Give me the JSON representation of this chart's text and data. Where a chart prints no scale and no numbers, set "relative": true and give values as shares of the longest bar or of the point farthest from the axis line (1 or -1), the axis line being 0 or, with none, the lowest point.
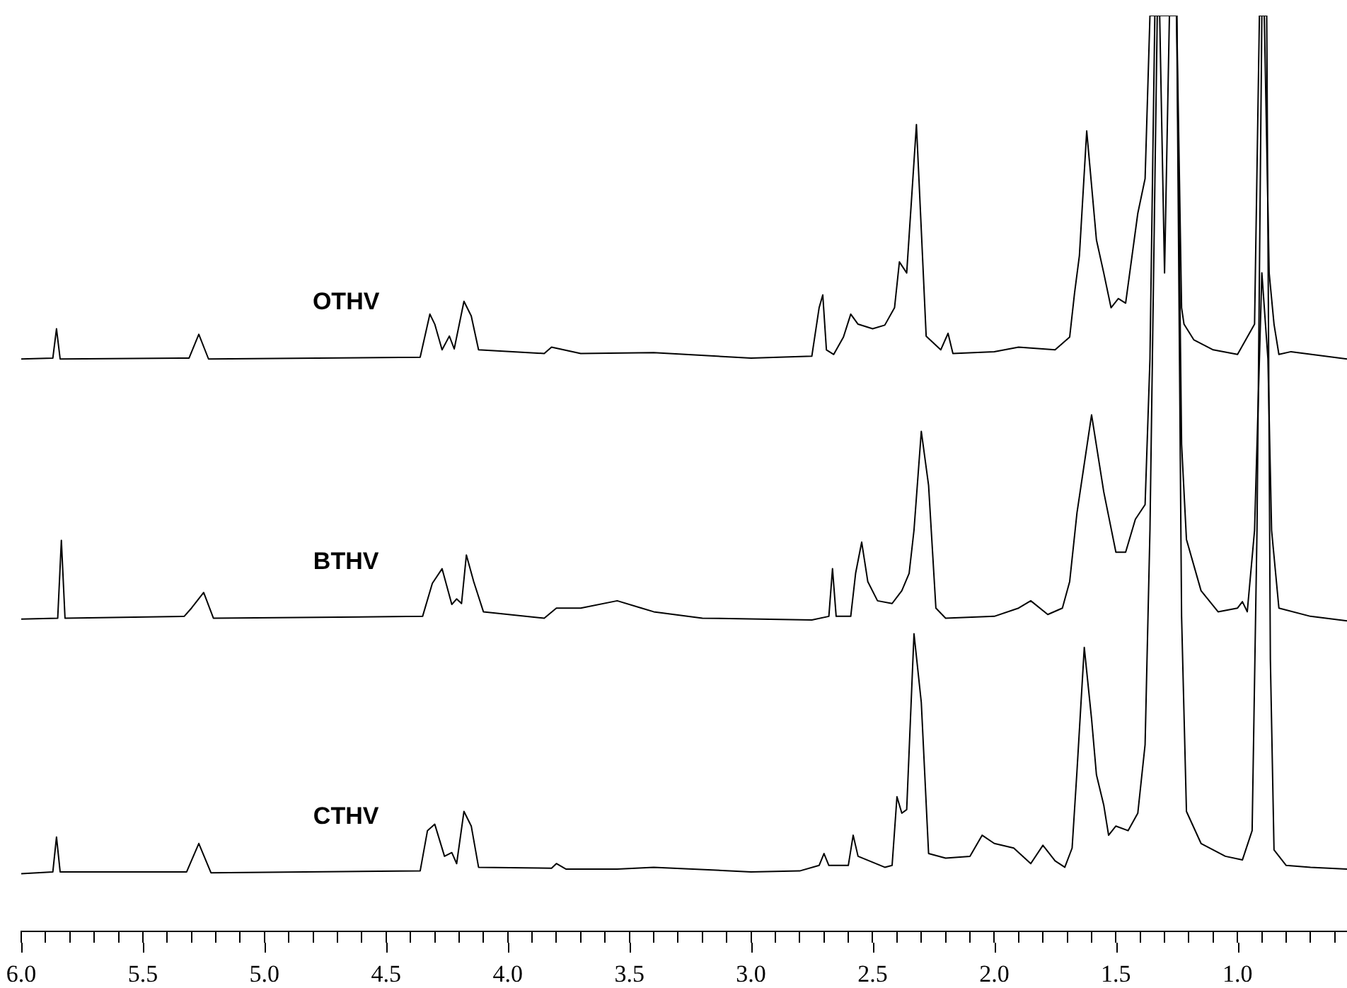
{
  "chart_data": {
    "type": "line",
    "relative": true,
    "legend": false,
    "grid": false,
    "tick_labels": "x",
    "xlim": [
      6.0,
      0.55
    ],
    "xticks": [
      {
        "value": 6.0,
        "label": "6.0"
      },
      {
        "value": 5.9,
        "label": null
      },
      {
        "value": 5.8,
        "label": null
      },
      {
        "value": 5.7,
        "label": null
      },
      {
        "value": 5.6,
        "label": null
      },
      {
        "value": 5.5,
        "label": "5.5"
      },
      {
        "value": 5.4,
        "label": null
      },
      {
        "value": 5.3,
        "label": null
      },
      {
        "value": 5.2,
        "label": null
      },
      {
        "value": 5.1,
        "label": null
      },
      {
        "value": 5.0,
        "label": "5.0"
      },
      {
        "value": 4.9,
        "label": null
      },
      {
        "value": 4.8,
        "label": null
      },
      {
        "value": 4.7,
        "label": null
      },
      {
        "value": 4.6,
        "label": null
      },
      {
        "value": 4.5,
        "label": "4.5"
      },
      {
        "value": 4.4,
        "label": null
      },
      {
        "value": 4.3,
        "label": null
      },
      {
        "value": 4.2,
        "label": null
      },
      {
        "value": 4.1,
        "label": null
      },
      {
        "value": 4.0,
        "label": "4.0"
      },
      {
        "value": 3.9,
        "label": null
      },
      {
        "value": 3.8,
        "label": null
      },
      {
        "value": 3.7,
        "label": null
      },
      {
        "value": 3.6,
        "label": null
      },
      {
        "value": 3.5,
        "label": "3.5"
      },
      {
        "value": 3.4,
        "label": null
      },
      {
        "value": 3.3,
        "label": null
      },
      {
        "value": 3.2,
        "label": null
      },
      {
        "value": 3.1,
        "label": null
      },
      {
        "value": 3.0,
        "label": "3.0"
      },
      {
        "value": 2.9,
        "label": null
      },
      {
        "value": 2.8,
        "label": null
      },
      {
        "value": 2.7,
        "label": null
      },
      {
        "value": 2.6,
        "label": null
      },
      {
        "value": 2.5,
        "label": "2.5"
      },
      {
        "value": 2.4,
        "label": null
      },
      {
        "value": 2.3,
        "label": null
      },
      {
        "value": 2.2,
        "label": null
      },
      {
        "value": 2.1,
        "label": null
      },
      {
        "value": 2.0,
        "label": "2.0"
      },
      {
        "value": 1.9,
        "label": null
      },
      {
        "value": 1.8,
        "label": null
      },
      {
        "value": 1.7,
        "label": null
      },
      {
        "value": 1.6,
        "label": null
      },
      {
        "value": 1.5,
        "label": "1.5"
      },
      {
        "value": 1.4,
        "label": null
      },
      {
        "value": 1.3,
        "label": null
      },
      {
        "value": 1.2,
        "label": null
      },
      {
        "value": 1.1,
        "label": null
      },
      {
        "value": 1.0,
        "label": "1.0"
      },
      {
        "value": 0.9,
        "label": null
      },
      {
        "value": 0.8,
        "label": null
      },
      {
        "value": 0.7,
        "label": null
      },
      {
        "value": 0.6,
        "label": null
      }
    ],
    "series": [
      {
        "name": "OTHV",
        "color": "#000000",
        "x": [
          6.0,
          5.87,
          5.855,
          5.84,
          5.31,
          5.27,
          5.23,
          4.36,
          4.32,
          4.3,
          4.27,
          4.24,
          4.22,
          4.18,
          4.15,
          4.12,
          3.85,
          3.82,
          3.7,
          3.4,
          3.0,
          2.75,
          2.72,
          2.705,
          2.69,
          2.66,
          2.62,
          2.59,
          2.56,
          2.5,
          2.45,
          2.41,
          2.39,
          2.36,
          2.32,
          2.3,
          2.28,
          2.22,
          2.19,
          2.17,
          2.0,
          1.9,
          1.75,
          1.69,
          1.67,
          1.65,
          1.62,
          1.58,
          1.55,
          1.52,
          1.49,
          1.46,
          1.41,
          1.38,
          1.36,
          1.32,
          1.3,
          1.28,
          1.25,
          1.23,
          1.22,
          1.18,
          1.1,
          1.0,
          0.93,
          0.91,
          0.89,
          0.87,
          0.85,
          0.83,
          0.78,
          0.55
        ],
        "values": [
          0.625,
          0.626,
          0.658,
          0.625,
          0.626,
          0.652,
          0.625,
          0.627,
          0.674,
          0.663,
          0.635,
          0.65,
          0.636,
          0.688,
          0.672,
          0.635,
          0.631,
          0.638,
          0.631,
          0.632,
          0.626,
          0.628,
          0.681,
          0.695,
          0.635,
          0.63,
          0.649,
          0.674,
          0.663,
          0.658,
          0.662,
          0.681,
          0.731,
          0.719,
          0.881,
          0.766,
          0.65,
          0.635,
          0.653,
          0.631,
          0.633,
          0.638,
          0.635,
          0.649,
          0.697,
          0.738,
          0.874,
          0.755,
          0.719,
          0.681,
          0.691,
          0.686,
          0.784,
          0.822,
          1,
          1,
          0.719,
          1,
          1,
          0.681,
          0.663,
          0.646,
          0.635,
          0.63,
          0.663,
          1,
          1,
          0.719,
          0.663,
          0.63,
          0.633,
          0.625
        ]
      },
      {
        "name": "BTHV",
        "color": "#000000",
        "x": [
          6.0,
          5.85,
          5.835,
          5.82,
          5.33,
          5.3,
          5.25,
          5.21,
          4.35,
          4.31,
          4.27,
          4.23,
          4.21,
          4.19,
          4.17,
          4.14,
          4.1,
          3.85,
          3.8,
          3.7,
          3.55,
          3.45,
          3.4,
          3.2,
          2.75,
          2.68,
          2.665,
          2.65,
          2.59,
          2.57,
          2.545,
          2.52,
          2.48,
          2.42,
          2.38,
          2.35,
          2.33,
          2.3,
          2.27,
          2.24,
          2.2,
          2.0,
          1.9,
          1.85,
          1.78,
          1.72,
          1.69,
          1.66,
          1.6,
          1.55,
          1.5,
          1.46,
          1.42,
          1.38,
          1.36,
          1.34,
          1.25,
          1.23,
          1.21,
          1.15,
          1.08,
          1.0,
          0.98,
          0.96,
          0.93,
          0.9,
          0.875,
          0.86,
          0.83,
          0.7,
          0.55
        ],
        "values": [
          0.341,
          0.342,
          0.427,
          0.342,
          0.344,
          0.353,
          0.37,
          0.342,
          0.344,
          0.38,
          0.396,
          0.357,
          0.363,
          0.358,
          0.411,
          0.382,
          0.349,
          0.342,
          0.353,
          0.353,
          0.361,
          0.353,
          0.349,
          0.342,
          0.34,
          0.344,
          0.396,
          0.344,
          0.344,
          0.391,
          0.425,
          0.382,
          0.361,
          0.358,
          0.372,
          0.391,
          0.438,
          0.546,
          0.487,
          0.353,
          0.342,
          0.344,
          0.353,
          0.361,
          0.346,
          0.353,
          0.382,
          0.457,
          0.564,
          0.48,
          0.414,
          0.414,
          0.45,
          0.466,
          0.625,
          1,
          1,
          0.532,
          0.428,
          0.372,
          0.349,
          0.353,
          0.36,
          0.349,
          0.438,
          0.719,
          0.625,
          0.438,
          0.353,
          0.344,
          0.339
        ]
      },
      {
        "name": "CTHV",
        "color": "#000000",
        "x": [
          6.0,
          5.87,
          5.855,
          5.84,
          5.32,
          5.27,
          5.22,
          4.36,
          4.33,
          4.3,
          4.26,
          4.23,
          4.21,
          4.18,
          4.15,
          4.12,
          3.82,
          3.8,
          3.76,
          3.55,
          3.4,
          3.0,
          2.8,
          2.72,
          2.7,
          2.68,
          2.6,
          2.58,
          2.56,
          2.45,
          2.42,
          2.4,
          2.38,
          2.36,
          2.33,
          2.3,
          2.27,
          2.2,
          2.1,
          2.05,
          2.0,
          1.92,
          1.85,
          1.8,
          1.75,
          1.71,
          1.68,
          1.66,
          1.63,
          1.6,
          1.58,
          1.55,
          1.53,
          1.5,
          1.45,
          1.41,
          1.38,
          1.36,
          1.33,
          1.25,
          1.23,
          1.21,
          1.15,
          1.05,
          0.98,
          0.94,
          0.92,
          0.9,
          0.88,
          0.865,
          0.85,
          0.8,
          0.7,
          0.55
        ],
        "values": [
          0.063,
          0.065,
          0.103,
          0.065,
          0.065,
          0.096,
          0.064,
          0.066,
          0.11,
          0.117,
          0.082,
          0.086,
          0.074,
          0.131,
          0.115,
          0.07,
          0.069,
          0.074,
          0.068,
          0.068,
          0.07,
          0.065,
          0.066,
          0.072,
          0.085,
          0.072,
          0.072,
          0.105,
          0.082,
          0.07,
          0.072,
          0.147,
          0.129,
          0.133,
          0.325,
          0.25,
          0.085,
          0.08,
          0.082,
          0.105,
          0.096,
          0.091,
          0.074,
          0.094,
          0.077,
          0.07,
          0.091,
          0.175,
          0.31,
          0.232,
          0.171,
          0.138,
          0.105,
          0.115,
          0.11,
          0.129,
          0.204,
          0.438,
          1,
          1,
          0.344,
          0.131,
          0.096,
          0.082,
          0.078,
          0.11,
          0.438,
          1,
          1,
          0.297,
          0.089,
          0.072,
          0.07,
          0.068
        ]
      }
    ]
  }
}
